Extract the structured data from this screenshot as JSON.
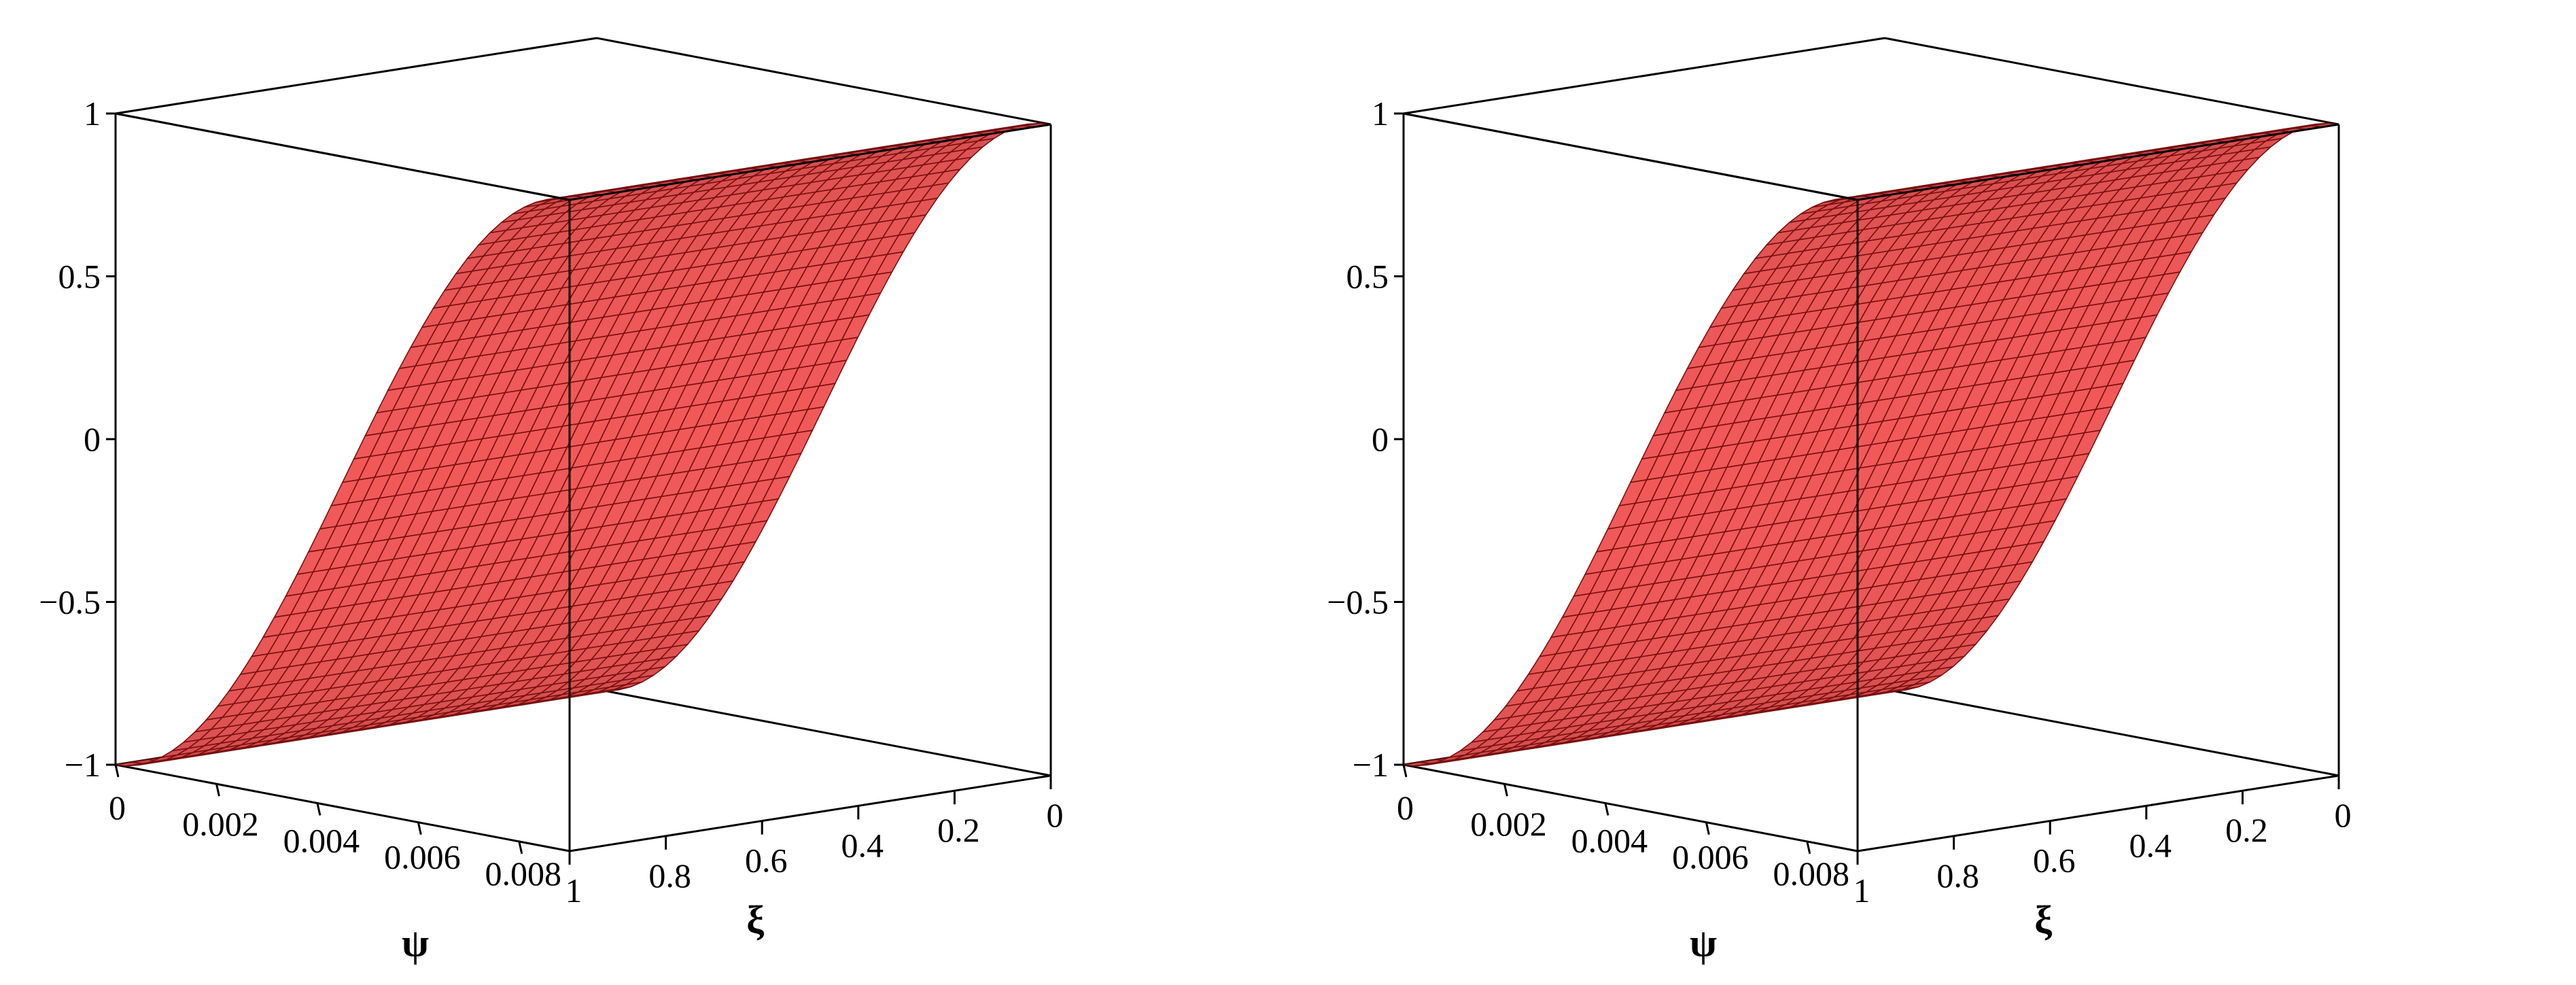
{
  "chart_data": [
    {
      "type": "surface3d",
      "title": "",
      "function_shape": "sigmoid in ψ, constant in ξ",
      "x_axis": {
        "label": "ψ",
        "range": [
          0,
          0.009
        ],
        "ticks": [
          "0",
          "0.002",
          "0.004",
          "0.006",
          "0.008"
        ],
        "tick_values": [
          0,
          0.002,
          0.004,
          0.006,
          0.008
        ]
      },
      "y_axis": {
        "label": "ξ",
        "range": [
          0,
          1
        ],
        "ticks": [
          "1",
          "0.8",
          "0.6",
          "0.4",
          "0.2",
          "0"
        ],
        "tick_values": [
          1,
          0.8,
          0.6,
          0.4,
          0.2,
          0
        ]
      },
      "z_axis": {
        "label": "",
        "range": [
          -1,
          1
        ],
        "ticks": [
          "1",
          "0.5",
          "0",
          "−0.5",
          "−1"
        ],
        "tick_values": [
          1,
          0.5,
          0,
          -0.5,
          -1
        ]
      },
      "psi_samples": [
        0,
        0.001,
        0.002,
        0.003,
        0.004,
        0.0045,
        0.005,
        0.006,
        0.007,
        0.008,
        0.009
      ],
      "z_samples": [
        -1,
        -0.97,
        -0.81,
        -0.5,
        -0.15,
        0,
        0.15,
        0.5,
        0.81,
        0.97,
        1
      ],
      "grid": "on",
      "legend": "none",
      "surface_color": "#f06060",
      "mesh_color": "#7a1010"
    },
    {
      "type": "surface3d",
      "title": "",
      "function_shape": "sigmoid in ψ, constant in ξ",
      "x_axis": {
        "label": "ψ",
        "range": [
          0,
          0.009
        ],
        "ticks": [
          "0",
          "0.002",
          "0.004",
          "0.006",
          "0.008"
        ],
        "tick_values": [
          0,
          0.002,
          0.004,
          0.006,
          0.008
        ]
      },
      "y_axis": {
        "label": "ξ",
        "range": [
          0,
          1
        ],
        "ticks": [
          "1",
          "0.8",
          "0.6",
          "0.4",
          "0.2",
          "0"
        ],
        "tick_values": [
          1,
          0.8,
          0.6,
          0.4,
          0.2,
          0
        ]
      },
      "z_axis": {
        "label": "",
        "range": [
          -1,
          1
        ],
        "ticks": [
          "1",
          "0.5",
          "0",
          "−0.5",
          "−1"
        ],
        "tick_values": [
          1,
          0.5,
          0,
          -0.5,
          -1
        ]
      },
      "psi_samples": [
        0,
        0.001,
        0.002,
        0.003,
        0.004,
        0.0045,
        0.005,
        0.006,
        0.007,
        0.008,
        0.009
      ],
      "z_samples": [
        -1,
        -0.97,
        -0.81,
        -0.5,
        -0.15,
        0,
        0.15,
        0.5,
        0.81,
        0.97,
        1
      ],
      "grid": "on",
      "legend": "none",
      "surface_color": "#f06060",
      "mesh_color": "#7a1010"
    }
  ]
}
